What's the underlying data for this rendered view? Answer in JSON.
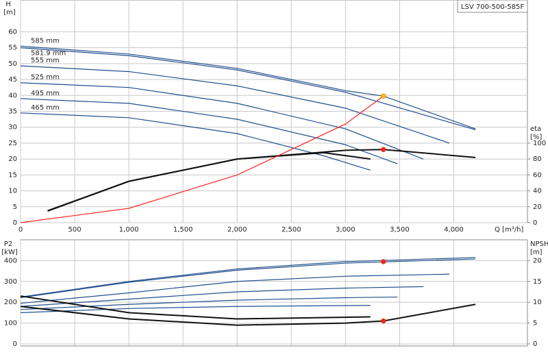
{
  "chart_data": [
    {
      "type": "line",
      "title": "LSV 700-500-585F",
      "ylabel": "H",
      "yunit": "[m]",
      "y2label": "eta",
      "y2unit": "[%]",
      "xlabel": "Q [m³/h]",
      "xlim": [
        0,
        4680
      ],
      "xticks": [
        0,
        500,
        {
          "value": 1000,
          "label": "1,000"
        },
        {
          "value": 1500,
          "label": "1,500"
        },
        {
          "value": 2000,
          "label": "2,000"
        },
        {
          "value": 2500,
          "label": "2,500"
        },
        {
          "value": 3000,
          "label": "3,000"
        },
        {
          "value": 3500,
          "label": "3,500"
        },
        {
          "value": 4000,
          "label": "4,000"
        }
      ],
      "ylim": [
        0,
        70
      ],
      "yticks": [
        0,
        5,
        10,
        15,
        20,
        25,
        30,
        35,
        40,
        45,
        50,
        55,
        60
      ],
      "y2lim": [
        0,
        280
      ],
      "y2ticks": [
        0,
        20,
        40,
        60,
        80,
        100
      ],
      "grid": true,
      "series": [
        {
          "name": "585 mm",
          "color": "#1f4e8c",
          "axis": "y",
          "x": [
            0,
            1000,
            2000,
            3000,
            3350,
            4200
          ],
          "values": [
            55.5,
            53,
            48.5,
            41.5,
            39.8,
            29.5
          ]
        },
        {
          "name": "581.9 mm",
          "color": "#1f4e8c",
          "axis": "y",
          "x": [
            0,
            1000,
            2000,
            3000,
            4200
          ],
          "values": [
            55,
            52.5,
            48,
            41,
            29.2
          ]
        },
        {
          "name": "555 mm",
          "color": "#1f4e8c",
          "axis": "y",
          "x": [
            0,
            1000,
            2000,
            3000,
            3960
          ],
          "values": [
            49.3,
            47.5,
            43,
            36,
            25
          ]
        },
        {
          "name": "525 mm",
          "color": "#1f4e8c",
          "axis": "y",
          "x": [
            0,
            1000,
            2000,
            3000,
            3720
          ],
          "values": [
            44,
            42.5,
            37.5,
            29.5,
            20
          ]
        },
        {
          "name": "495 mm",
          "color": "#1f4e8c",
          "axis": "y",
          "x": [
            0,
            1000,
            2000,
            3000,
            3480
          ],
          "values": [
            39,
            37.5,
            32.5,
            24.5,
            18.5
          ]
        },
        {
          "name": "465 mm",
          "color": "#1f4e8c",
          "axis": "y",
          "x": [
            0,
            1000,
            2000,
            2800,
            3230
          ],
          "values": [
            34.5,
            33,
            28,
            21,
            16.5
          ]
        },
        {
          "color": "#111111",
          "axis": "y2",
          "x": [
            250,
            1000,
            2000,
            3000,
            3350,
            4200
          ],
          "values": [
            14.6,
            52,
            80,
            91,
            92,
            82
          ]
        },
        {
          "color": "#111111",
          "axis": "y2",
          "x": [
            250,
            1000,
            2000,
            2800,
            3230
          ],
          "values": [
            15,
            52,
            80,
            88,
            80
          ]
        },
        {
          "color": "#ff2020",
          "axis": "y",
          "x": [
            0,
            1000,
            2000,
            3000,
            3350
          ],
          "values": [
            0,
            4.5,
            15,
            31,
            39.8
          ]
        }
      ],
      "markers": [
        {
          "x": 3350,
          "y": 39.8,
          "color": "#ffc000",
          "axis": "y"
        },
        {
          "x": 3350,
          "y": 92,
          "color": "#ff2020",
          "axis": "y2"
        }
      ]
    },
    {
      "type": "line",
      "ylabel": "P2",
      "yunit": "[kW]",
      "y2label": "NPSH",
      "y2unit": "[m]",
      "xlim": [
        0,
        4680
      ],
      "ylim": [
        -10,
        500
      ],
      "yticks": [
        0,
        100,
        200,
        300,
        400
      ],
      "y2lim": [
        -0.5,
        25
      ],
      "y2ticks": [
        0,
        5,
        10,
        15,
        20
      ],
      "grid": true,
      "series": [
        {
          "color": "#1f4e8c",
          "axis": "y",
          "x": [
            0,
            1000,
            2000,
            3000,
            4200
          ],
          "values": [
            225,
            300,
            360,
            395,
            415
          ]
        },
        {
          "color": "#1f4e8c",
          "axis": "y",
          "x": [
            0,
            1000,
            2000,
            3000,
            4200
          ],
          "values": [
            222,
            296,
            354,
            388,
            408
          ]
        },
        {
          "color": "#1f4e8c",
          "axis": "y",
          "x": [
            0,
            1000,
            2000,
            3000,
            3960
          ],
          "values": [
            195,
            245,
            300,
            325,
            335
          ]
        },
        {
          "color": "#1f4e8c",
          "axis": "y",
          "x": [
            0,
            1000,
            2000,
            3000,
            3720
          ],
          "values": [
            180,
            215,
            250,
            268,
            275
          ]
        },
        {
          "color": "#1f4e8c",
          "axis": "y",
          "x": [
            0,
            1000,
            2000,
            3000,
            3480
          ],
          "values": [
            165,
            190,
            210,
            222,
            225
          ]
        },
        {
          "color": "#1f4e8c",
          "axis": "y",
          "x": [
            0,
            1000,
            2000,
            3230
          ],
          "values": [
            150,
            170,
            180,
            185
          ]
        },
        {
          "color": "#111111",
          "axis": "y2",
          "x": [
            0,
            1000,
            2000,
            3000,
            3350,
            4200
          ],
          "values": [
            9,
            6,
            4.5,
            5,
            5.5,
            9.5
          ]
        },
        {
          "color": "#111111",
          "axis": "y2",
          "x": [
            0,
            1000,
            2000,
            3230
          ],
          "values": [
            11.5,
            7.5,
            6,
            6.5
          ]
        }
      ],
      "markers": [
        {
          "x": 3350,
          "y": 395,
          "color": "#ff2020",
          "axis": "y"
        },
        {
          "x": 3350,
          "y": 5.5,
          "color": "#ff2020",
          "axis": "y2"
        }
      ]
    }
  ]
}
